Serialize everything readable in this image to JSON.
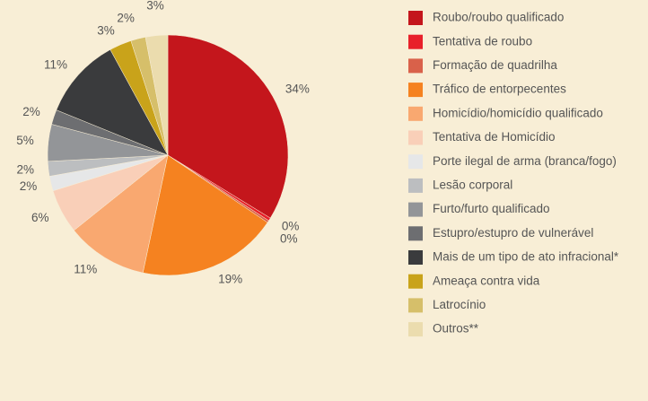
{
  "chart_data": {
    "type": "pie",
    "categories": [
      "Roubo/roubo qualificado",
      "Tentativa de roubo",
      "Formação de quadrilha",
      "Tráfico de entorpecentes",
      "Homicídio/homicídio qualificado",
      "Tentativa de Homicídio",
      "Porte ilegal de arma (branca/fogo)",
      "Lesão corporal",
      "Furto/furto qualificado",
      "Estupro/estupro de vulnerável",
      "Mais de um tipo de ato infracional*",
      "Ameaça contra vida",
      "Latrocínio",
      "Outros**"
    ],
    "values": [
      34,
      0.4,
      0.3,
      19,
      11,
      6,
      2,
      2,
      5,
      2,
      11,
      3,
      2,
      3
    ],
    "value_labels": [
      "34%",
      "0%",
      "0%",
      "19%",
      "11%",
      "6%",
      "2%",
      "2%",
      "5%",
      "2%",
      "11%",
      "3%",
      "2%",
      "3%"
    ],
    "colors": [
      "#c4161c",
      "#e8202a",
      "#d9614a",
      "#f58220",
      "#f9a870",
      "#f9cfb8",
      "#e6e7e8",
      "#bcbec0",
      "#939598",
      "#6d6e71",
      "#3a3b3d",
      "#c9a31a",
      "#d6bf6a",
      "#ebdcae"
    ],
    "legend": "right"
  }
}
